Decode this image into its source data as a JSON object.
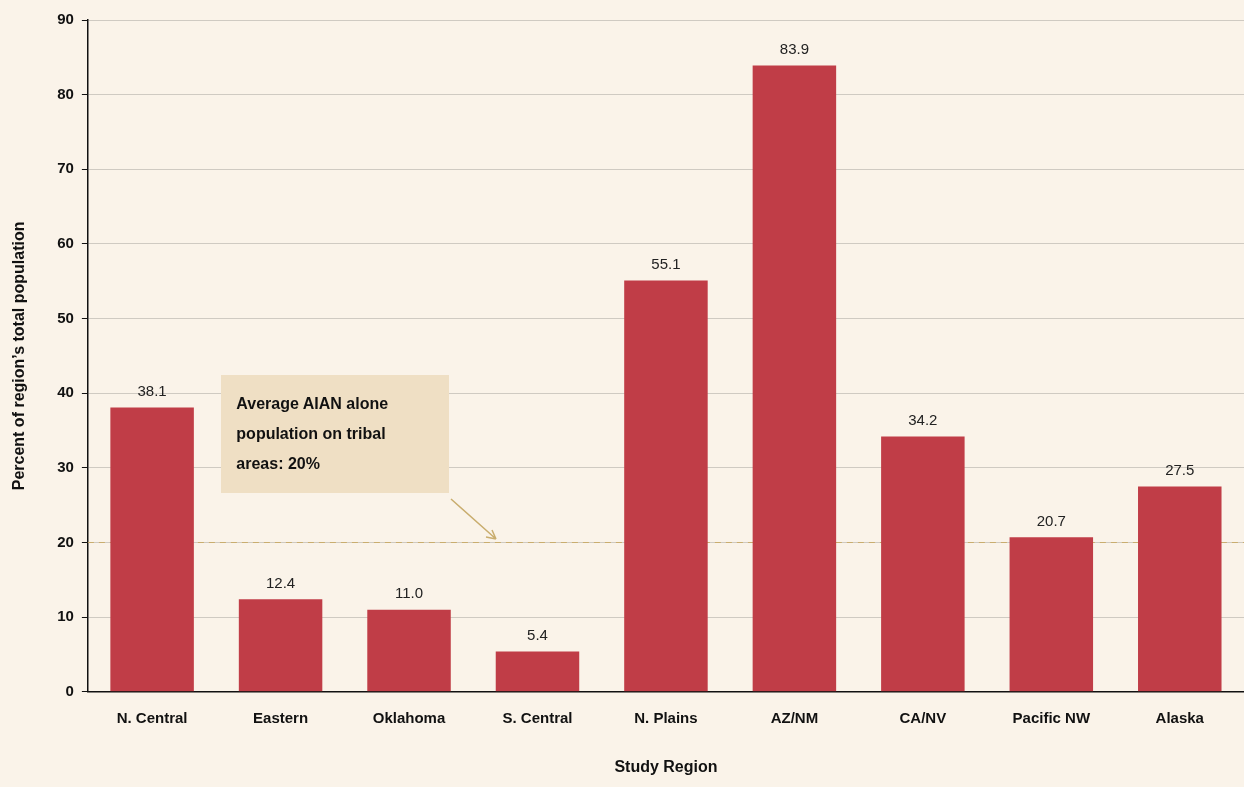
{
  "chart_data": {
    "type": "bar",
    "xlabel": "Study Region",
    "ylabel": "Percent of region’s total population",
    "categories": [
      "N. Central",
      "Eastern",
      "Oklahoma",
      "S. Central",
      "N. Plains",
      "AZ/NM",
      "CA/NV",
      "Pacific NW",
      "Alaska"
    ],
    "values": [
      38.1,
      12.4,
      11.0,
      5.4,
      55.1,
      83.9,
      34.2,
      20.7,
      27.5
    ],
    "value_labels": [
      "38.1",
      "12.4",
      "11.0",
      "5.4",
      "55.1",
      "83.9",
      "34.2",
      "20.7",
      "27.5"
    ],
    "color": "#c03d47",
    "ylim": [
      0,
      90
    ],
    "yticks": [
      0,
      10,
      20,
      30,
      40,
      50,
      60,
      70,
      80,
      90
    ],
    "grid": "y",
    "legend": false,
    "annotations": [
      "Average AIAN alone population on tribal areas: 20%"
    ],
    "ref_lines": [
      {
        "axis": "y",
        "value": 20,
        "color": "#c9ad6e",
        "line_style": "dashed"
      }
    ]
  }
}
